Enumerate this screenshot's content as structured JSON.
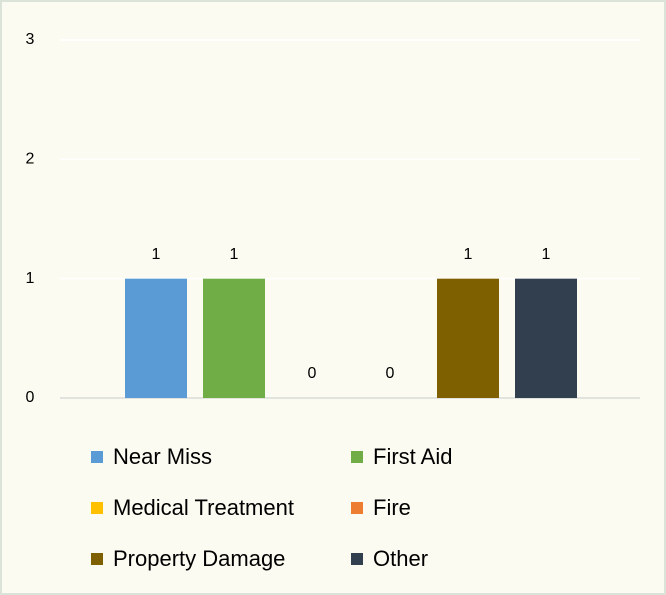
{
  "chart_data": {
    "type": "bar",
    "series": [
      {
        "name": "Near Miss",
        "color": "#5b9bd5",
        "values": [
          1
        ]
      },
      {
        "name": "First Aid",
        "color": "#70ad47",
        "values": [
          1
        ]
      },
      {
        "name": "Medical Treatment",
        "color": "#ffc000",
        "values": [
          0
        ]
      },
      {
        "name": "Fire",
        "color": "#ed7d31",
        "values": [
          0
        ]
      },
      {
        "name": "Property Damage",
        "color": "#7f6000",
        "values": [
          1
        ]
      },
      {
        "name": "Other",
        "color": "#323f4f",
        "values": [
          1
        ]
      }
    ],
    "ylim": [
      0,
      3
    ],
    "yticks": [
      0,
      1,
      2,
      3
    ],
    "grid": true,
    "legend": "bottom"
  }
}
